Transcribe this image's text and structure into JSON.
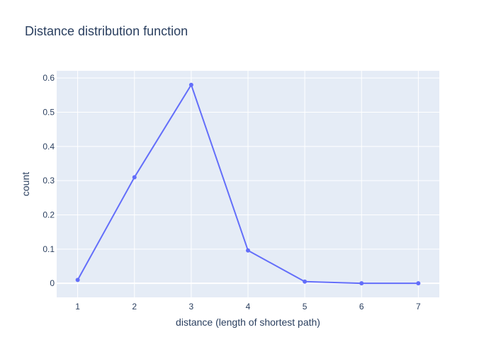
{
  "chart_data": {
    "type": "line",
    "title": "Distance distribution function",
    "xlabel": "distance (length of shortest path)",
    "ylabel": "count",
    "x": [
      1,
      2,
      3,
      4,
      5,
      6,
      7
    ],
    "series": [
      {
        "values": [
          0.01,
          0.31,
          0.58,
          0.096,
          0.005,
          0.0,
          0.0
        ]
      }
    ],
    "xticks": [
      "1",
      "2",
      "3",
      "4",
      "5",
      "6",
      "7"
    ],
    "yticks": [
      "0",
      "0.1",
      "0.2",
      "0.3",
      "0.4",
      "0.5",
      "0.6"
    ],
    "xlim": [
      0.63,
      7.37
    ],
    "ylim": [
      -0.041,
      0.621
    ],
    "grid": true,
    "markers": true,
    "colors": {
      "line": "#636efa",
      "plot_bg": "#e5ecf6",
      "grid": "#ffffff",
      "text": "#2a3f5f"
    }
  }
}
